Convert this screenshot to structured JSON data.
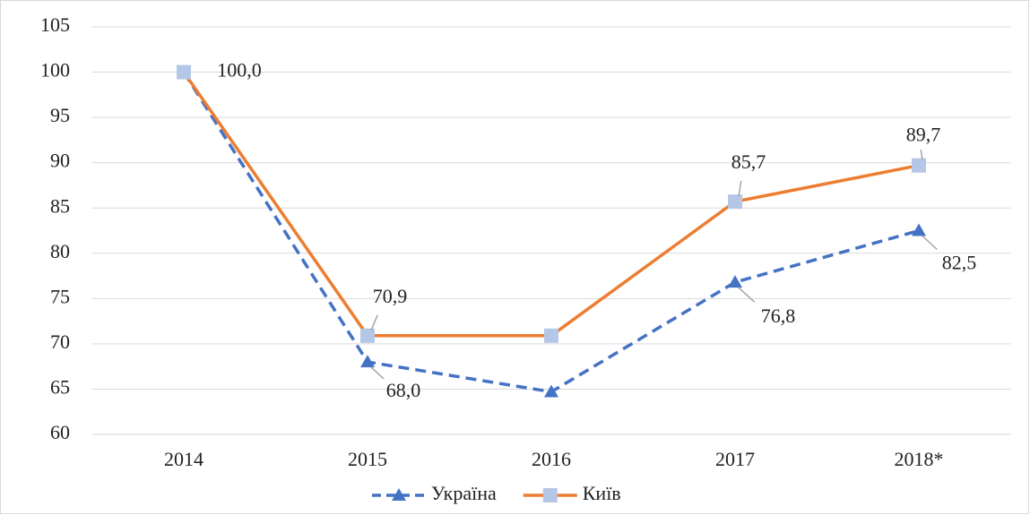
{
  "chart_data": {
    "type": "line",
    "categories": [
      "2014",
      "2015",
      "2016",
      "2017",
      "2018*"
    ],
    "series": [
      {
        "name": "Україна",
        "color": "#4472c4",
        "dash": true,
        "marker": "triangle",
        "marker_color": "#4472c4",
        "values": [
          100,
          68.0,
          64.7,
          76.8,
          82.5
        ],
        "value_labels": [
          null,
          "68,0",
          null,
          "76,8",
          "82,5"
        ]
      },
      {
        "name": "Київ",
        "color": "#ed7d31",
        "dash": false,
        "marker": "square",
        "marker_color": "#b4c7e7",
        "values": [
          100,
          70.9,
          70.9,
          85.7,
          89.7
        ],
        "value_labels": [
          "100,0",
          "70,9",
          null,
          "85,7",
          "89,7"
        ]
      }
    ],
    "ylim": [
      60,
      105
    ],
    "yticks": [
      60,
      65,
      70,
      75,
      80,
      85,
      90,
      95,
      100,
      105
    ],
    "grid": true,
    "legend": "bottom"
  }
}
